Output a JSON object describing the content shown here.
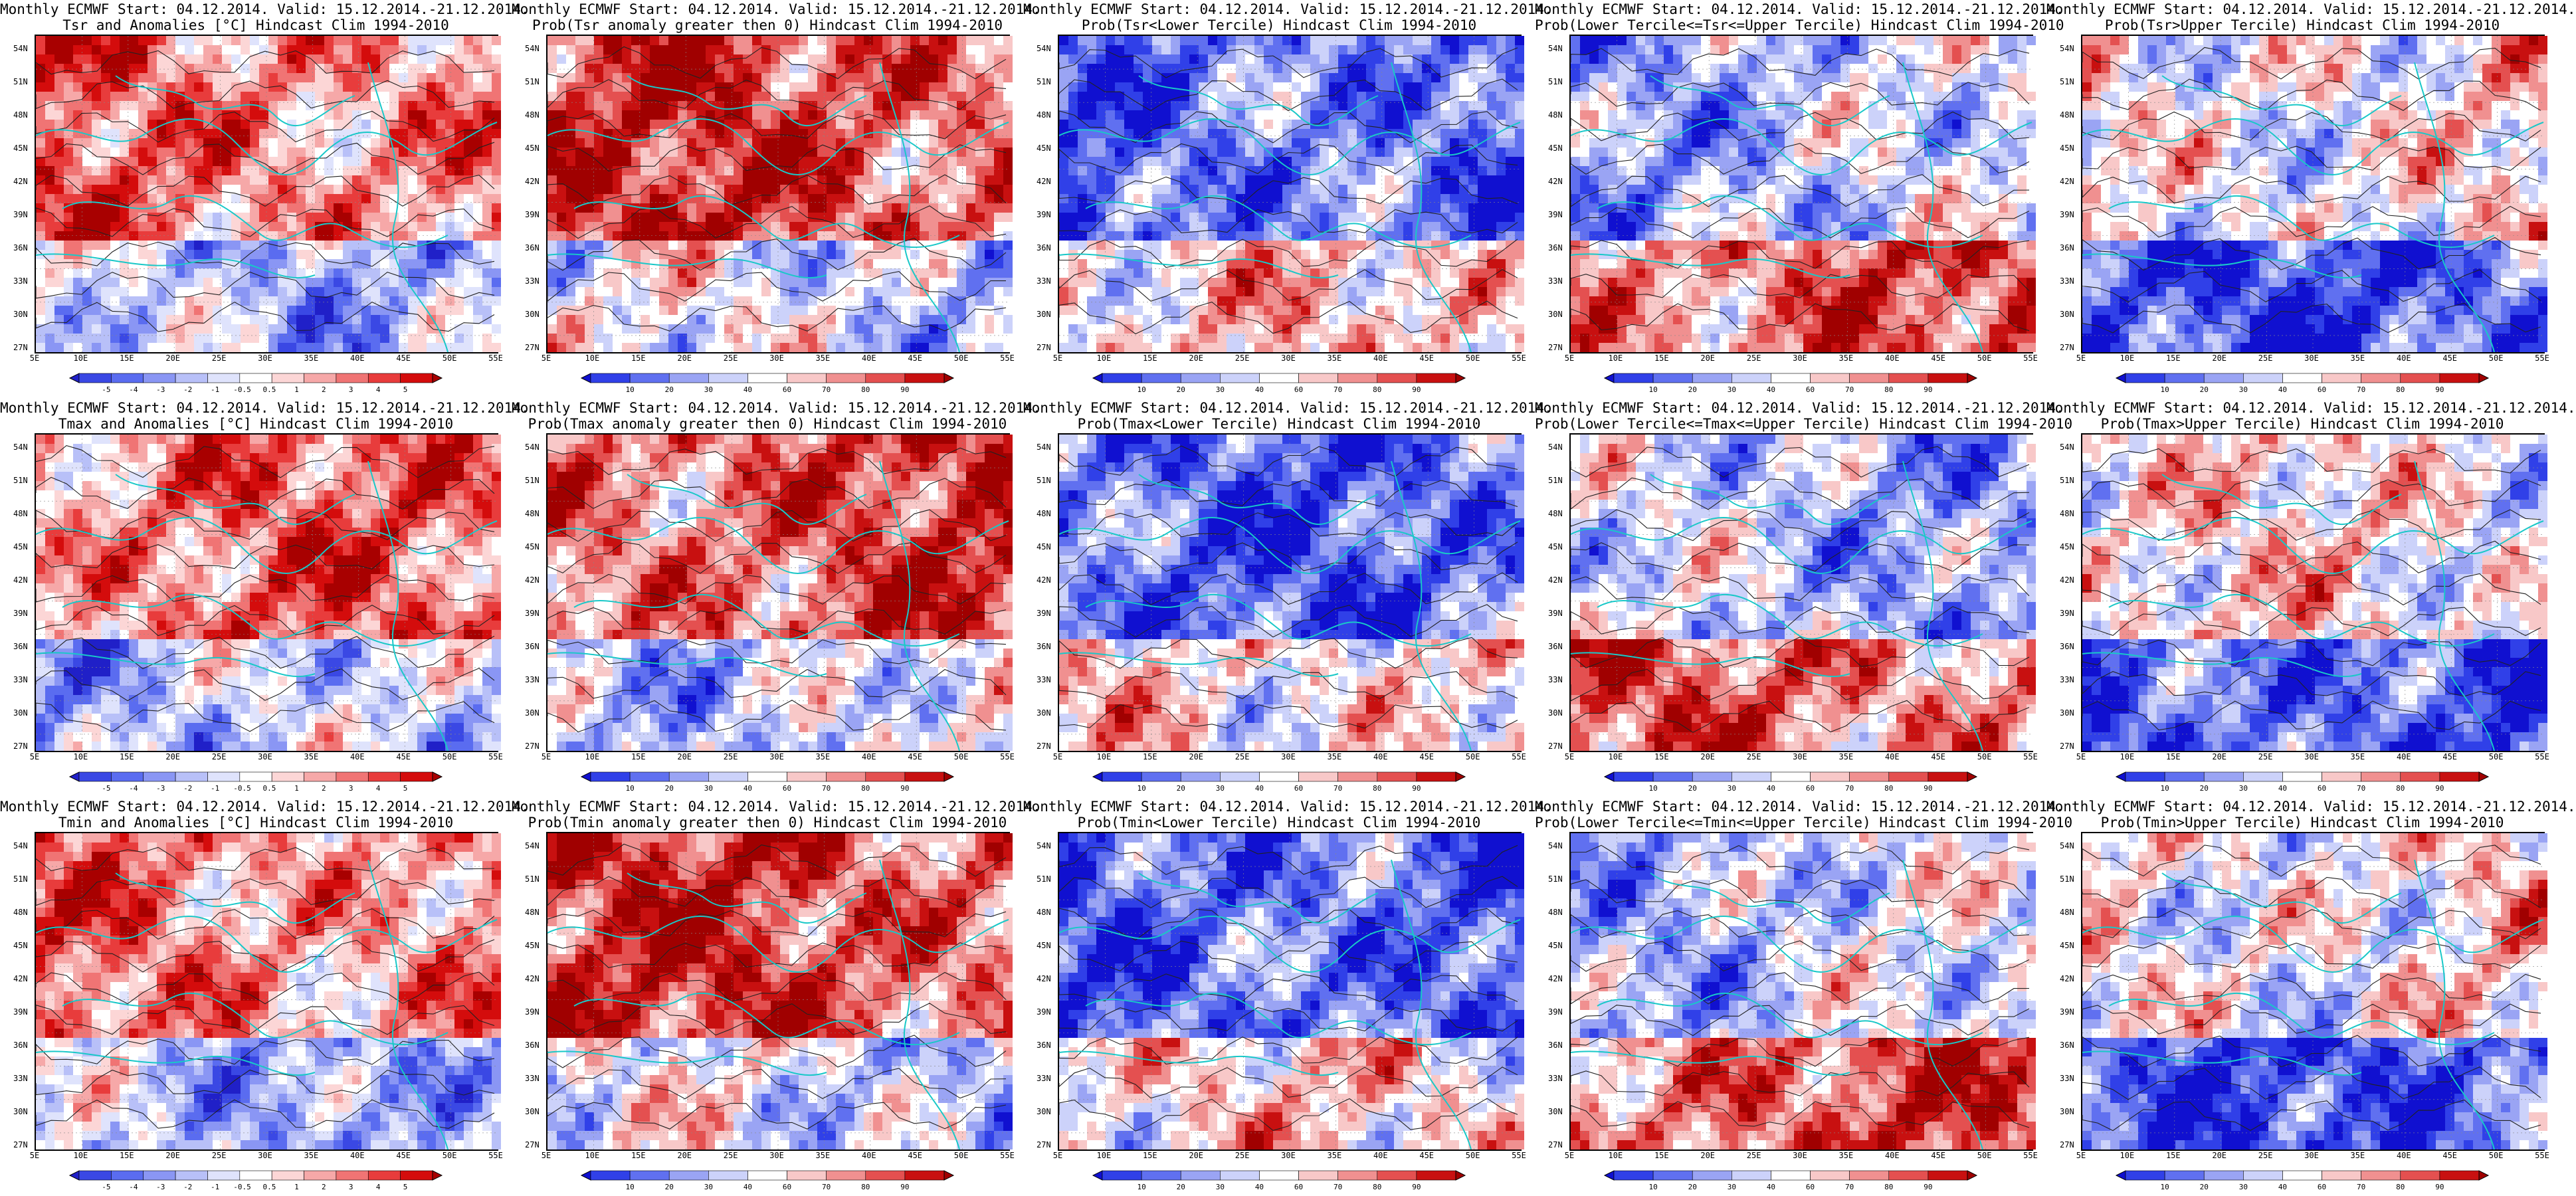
{
  "title_line1": "Monthly ECMWF Start: 04.12.2014. Valid: 15.12.2014.-21.12.2014.",
  "palettes": {
    "anomaly": [
      "#2020c8",
      "#3a48e4",
      "#5a6cf0",
      "#8a96f4",
      "#b8c0f8",
      "#dfe3fc",
      "#ffffff",
      "#fcd6d6",
      "#f6a8a8",
      "#f07474",
      "#e83c3c",
      "#d40c0c",
      "#a80000"
    ],
    "prob": [
      "#1010d0",
      "#3040e8",
      "#6070f0",
      "#9aa4f4",
      "#ccd2fa",
      "#ffffff",
      "#f8c8c8",
      "#f09090",
      "#e45050",
      "#c81010",
      "#a00000"
    ]
  },
  "map_axes": {
    "lat_labels": [
      "54N",
      "51N",
      "48N",
      "45N",
      "42N",
      "39N",
      "36N",
      "33N",
      "30N",
      "27N"
    ],
    "lon_labels": [
      "5E",
      "10E",
      "15E",
      "20E",
      "25E",
      "30E",
      "35E",
      "40E",
      "45E",
      "50E",
      "55E"
    ]
  },
  "colorbars": {
    "anomaly": [
      "-5",
      "-4",
      "-3",
      "-2",
      "-1",
      "-0.5",
      "0.5",
      "1",
      "2",
      "3",
      "4",
      "5"
    ],
    "prob": [
      "10",
      "20",
      "30",
      "40",
      "60",
      "70",
      "80",
      "90"
    ]
  },
  "rows": [
    {
      "variable": "Tsr",
      "panels": [
        {
          "title": "Tsr and Anomalies [°C] Hindcast Clim 1994-2010",
          "palette": "anomaly",
          "bias": 0.6
        },
        {
          "title": "Prob(Tsr anomaly greater then 0) Hindcast Clim 1994-2010",
          "palette": "prob",
          "bias": 0.75
        },
        {
          "title": "Prob(Tsr<Lower Tercile) Hindcast Clim 1994-2010",
          "palette": "prob",
          "bias": -0.75
        },
        {
          "title": "Prob(Lower Tercile<=Tsr<=Upper Tercile) Hindcast Clim 1994-2010",
          "palette": "prob",
          "bias": -0.3
        },
        {
          "title": "Prob(Tsr>Upper Tercile) Hindcast Clim 1994-2010",
          "palette": "prob",
          "bias": 0.1
        }
      ]
    },
    {
      "variable": "Tmax",
      "panels": [
        {
          "title": "Tmax and Anomalies [°C] Hindcast Clim 1994-2010",
          "palette": "anomaly",
          "bias": 0.55
        },
        {
          "title": "Prob(Tmax anomaly greater then 0) Hindcast Clim 1994-2010",
          "palette": "prob",
          "bias": 0.7
        },
        {
          "title": "Prob(Tmax<Lower Tercile) Hindcast Clim 1994-2010",
          "palette": "prob",
          "bias": -0.7
        },
        {
          "title": "Prob(Lower Tercile<=Tmax<=Upper Tercile) Hindcast Clim 1994-2010",
          "palette": "prob",
          "bias": -0.3
        },
        {
          "title": "Prob(Tmax>Upper Tercile) Hindcast Clim 1994-2010",
          "palette": "prob",
          "bias": 0.05
        }
      ]
    },
    {
      "variable": "Tmin",
      "panels": [
        {
          "title": "Tmin and Anomalies [°C] Hindcast Clim 1994-2010",
          "palette": "anomaly",
          "bias": 0.55
        },
        {
          "title": "Prob(Tmin anomaly greater then 0) Hindcast Clim 1994-2010",
          "palette": "prob",
          "bias": 0.75
        },
        {
          "title": "Prob(Tmin<Lower Tercile) Hindcast Clim 1994-2010",
          "palette": "prob",
          "bias": -0.8
        },
        {
          "title": "Prob(Lower Tercile<=Tmin<=Upper Tercile) Hindcast Clim 1994-2010",
          "palette": "prob",
          "bias": -0.25
        },
        {
          "title": "Prob(Tmin>Upper Tercile) Hindcast Clim 1994-2010",
          "palette": "prob",
          "bias": 0.1
        }
      ]
    }
  ]
}
